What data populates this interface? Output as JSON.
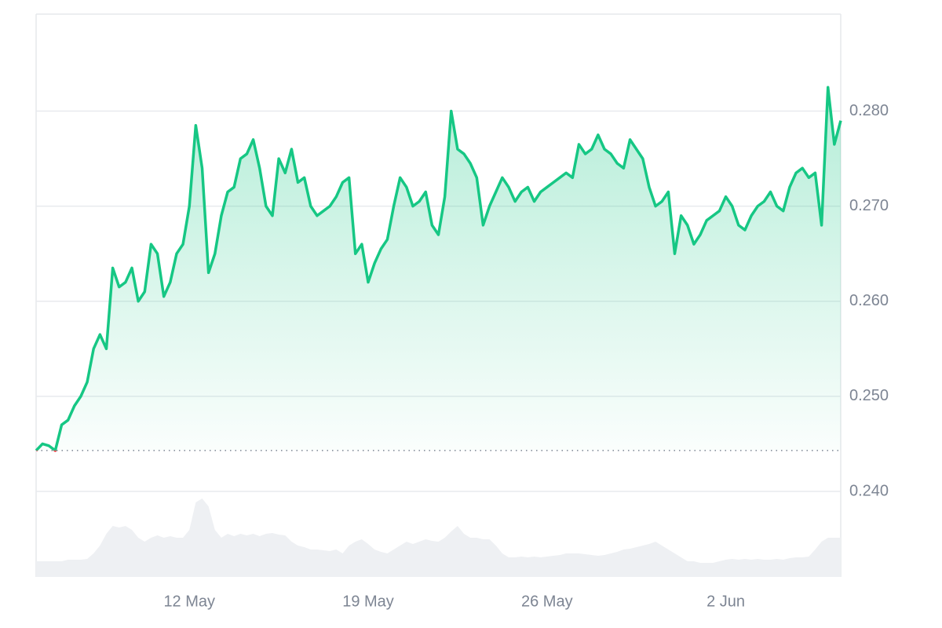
{
  "chart_data": {
    "type": "line",
    "color": "#16c784",
    "down_color": "#ea3943",
    "baseline": 0.2443,
    "categories": [
      null,
      null,
      null,
      null,
      null,
      null,
      null,
      null,
      null,
      null,
      null,
      null,
      null,
      null,
      null,
      null,
      null,
      null,
      null,
      null,
      null,
      null,
      null,
      null,
      "12 May",
      null,
      null,
      null,
      null,
      null,
      null,
      null,
      null,
      null,
      null,
      null,
      null,
      null,
      null,
      null,
      null,
      null,
      null,
      null,
      null,
      null,
      null,
      null,
      null,
      null,
      null,
      null,
      "19 May",
      null,
      null,
      null,
      null,
      null,
      null,
      null,
      null,
      null,
      null,
      null,
      null,
      null,
      null,
      null,
      null,
      null,
      null,
      null,
      null,
      null,
      null,
      null,
      null,
      null,
      null,
      null,
      "26 May",
      null,
      null,
      null,
      null,
      null,
      null,
      null,
      null,
      null,
      null,
      null,
      null,
      null,
      null,
      null,
      null,
      null,
      null,
      null,
      null,
      null,
      null,
      null,
      null,
      null,
      null,
      null,
      "2 Jun",
      null,
      null,
      null,
      null,
      null,
      null,
      null,
      null,
      null,
      null,
      null,
      null,
      null,
      null,
      null,
      null,
      null,
      null
    ],
    "values": [
      0.2443,
      0.245,
      0.2448,
      0.2443,
      0.247,
      0.2475,
      0.249,
      0.25,
      0.2515,
      0.255,
      0.2565,
      0.255,
      0.2635,
      0.2615,
      0.262,
      0.2635,
      0.26,
      0.261,
      0.266,
      0.265,
      0.2605,
      0.262,
      0.265,
      0.266,
      0.27,
      0.2785,
      0.274,
      0.263,
      0.265,
      0.269,
      0.2715,
      0.272,
      0.275,
      0.2755,
      0.277,
      0.274,
      0.27,
      0.269,
      0.275,
      0.2735,
      0.276,
      0.2725,
      0.273,
      0.27,
      0.269,
      0.2695,
      0.27,
      0.271,
      0.2725,
      0.273,
      0.265,
      0.266,
      0.262,
      0.264,
      0.2655,
      0.2665,
      0.27,
      0.273,
      0.272,
      0.27,
      0.2705,
      0.2715,
      0.268,
      0.267,
      0.271,
      0.28,
      0.276,
      0.2755,
      0.2745,
      0.273,
      0.268,
      0.27,
      0.2715,
      0.273,
      0.272,
      0.2705,
      0.2715,
      0.272,
      0.2705,
      0.2715,
      0.272,
      0.2725,
      0.273,
      0.2735,
      0.273,
      0.2765,
      0.2755,
      0.276,
      0.2775,
      0.276,
      0.2755,
      0.2745,
      0.274,
      0.277,
      0.276,
      0.275,
      0.272,
      0.27,
      0.2705,
      0.2715,
      0.265,
      0.269,
      0.268,
      0.266,
      0.267,
      0.2685,
      0.269,
      0.2695,
      0.271,
      0.27,
      0.268,
      0.2675,
      0.269,
      0.27,
      0.2705,
      0.2715,
      0.27,
      0.2695,
      0.272,
      0.2735,
      0.274,
      0.273,
      0.2735,
      0.268,
      0.2825,
      0.2765,
      0.279
    ],
    "volume_color": "#eef0f3",
    "volume_lim": [
      0,
      10
    ],
    "volume": [
      2,
      2,
      2,
      2,
      2,
      2.2,
      2.2,
      2.2,
      2.3,
      3,
      4,
      5.5,
      6.5,
      6.3,
      6.5,
      6,
      5,
      4.5,
      5,
      5.3,
      5,
      5.2,
      5,
      5,
      6,
      9.5,
      10,
      9,
      6,
      5,
      5.5,
      5.2,
      5.5,
      5.3,
      5.5,
      5.2,
      5.5,
      5.6,
      5.4,
      5.3,
      4.5,
      4,
      3.8,
      3.5,
      3.5,
      3.4,
      3.3,
      3.5,
      3,
      4,
      4.5,
      4.8,
      4.2,
      3.5,
      3.2,
      3,
      3.5,
      4,
      4.5,
      4.2,
      4.5,
      4.8,
      4.6,
      4.5,
      5,
      5.8,
      6.5,
      5.5,
      5,
      5,
      4.8,
      4.8,
      4,
      3,
      2.5,
      2.5,
      2.6,
      2.5,
      2.6,
      2.5,
      2.6,
      2.7,
      2.8,
      3,
      3,
      3,
      2.9,
      2.8,
      2.7,
      2.8,
      3,
      3.2,
      3.5,
      3.6,
      3.8,
      4,
      4.2,
      4.5,
      4,
      3.5,
      3,
      2.5,
      2,
      2,
      1.8,
      1.8,
      1.8,
      2,
      2.2,
      2.3,
      2.2,
      2.3,
      2.2,
      2.3,
      2.2,
      2.2,
      2.3,
      2.2,
      2.4,
      2.5,
      2.5,
      2.6,
      3.5,
      4.5,
      5,
      5,
      5
    ],
    "ylim": [
      0.231,
      0.2902
    ],
    "yticks": [
      {
        "value": 0.24,
        "label": "0.240"
      },
      {
        "value": 0.25,
        "label": "0.250"
      },
      {
        "value": 0.26,
        "label": "0.260"
      },
      {
        "value": 0.27,
        "label": "0.270"
      },
      {
        "value": 0.28,
        "label": "0.280"
      }
    ],
    "grid": true
  }
}
